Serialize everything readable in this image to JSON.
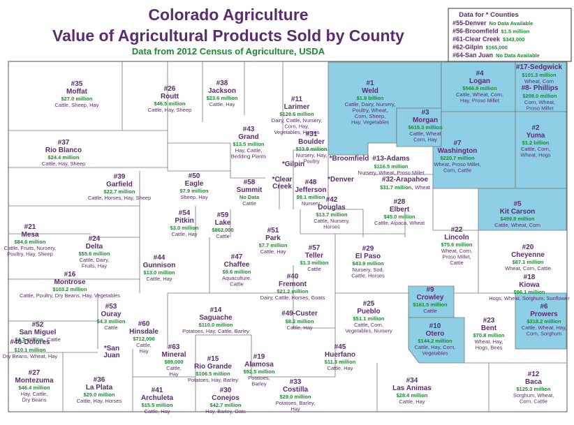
{
  "header": {
    "title": [
      "Colorado Agriculture",
      "Value of Agricultural Products Sold by County"
    ],
    "subtitle": "Data from 2012 Census of Agriculture, USDA"
  },
  "legend": {
    "title": "Data for * Counties",
    "items": [
      {
        "label": "#55-Denver",
        "note": "No Data Available"
      },
      {
        "label": "#56-Broomfield",
        "note": "$1.5 million"
      },
      {
        "label": "#61-Clear Creek",
        "note": "$343,000"
      },
      {
        "label": "#62-Gilpin",
        "note": "$165,000"
      },
      {
        "label": "#64-San Juan",
        "note": "No Data Available"
      }
    ]
  },
  "counties": [
    {
      "label": "#35",
      "name": "Moffat",
      "value": "$27.0 million",
      "products": [
        "Cattle, Sheep, Hay"
      ]
    },
    {
      "label": "#26",
      "name": "Routt",
      "value": "$46.5 million",
      "products": [
        "Cattle, Hay, Sheep"
      ]
    },
    {
      "label": "#38",
      "name": "Jackson",
      "value": "$23.6 million",
      "products": [
        "Cattle, Hay"
      ]
    },
    {
      "label": "#11",
      "name": "Larimer",
      "value": "$128.6 million",
      "products": [
        "Dairy, Cattle, Nursery,",
        "Corn, Hay,",
        "Vegetables, Horses"
      ]
    },
    {
      "label": "#1",
      "name": "Weld",
      "value": "$1.9 billion",
      "products": [
        "Cattle, Dairy, Nursery,",
        "Poultry, Wheat,",
        "Corn,  Sheep,",
        "Hay, Vegetables"
      ]
    },
    {
      "label": "#4",
      "name": "Logan",
      "value": "$566.9 million",
      "products": [
        "Cattle, Wheat, Corn,",
        "Hay, Proso Millet"
      ]
    },
    {
      "label": "#17-Sedgwick",
      "value": "$101.3 million",
      "products": [
        "Wheat, Corn"
      ]
    },
    {
      "label": "#8- Phillips",
      "value": "$208.0 million",
      "products": [
        "Corn, Wheat,",
        "Proso Millet"
      ]
    },
    {
      "label": "#3",
      "name": "Morgan",
      "value": "$615.3 million",
      "products": [
        "Cattle, Wheat",
        "Corn, Hay"
      ]
    },
    {
      "label": "#2",
      "name": "Yuma",
      "value": "$1.2 billion",
      "products": [
        "Cattle, Corn,",
        "Wheat, Hogs"
      ]
    },
    {
      "label": "#37",
      "name": "Rio Blanco",
      "value": "$24.4 million",
      "products": [
        "Cattle, Hay, Sheep"
      ]
    },
    {
      "label": "#43",
      "name": "Grand",
      "value": "$13.5 million",
      "products": [
        "Hay, Cattle,",
        "Bedding Plants"
      ]
    },
    {
      "label": "#31",
      "name": "Boulder",
      "value": "$33.9 million",
      "products": [
        "Nursery, Hay,",
        "Poultry"
      ]
    },
    {
      "label": "#7",
      "name": "Washington",
      "value": "$220.7 million",
      "products": [
        "Wheat, Proso Millet,",
        "Corn, Cattle"
      ]
    },
    {
      "label": "*Gilpin"
    },
    {
      "label": "*Broomfield"
    },
    {
      "label": "#13-Adams",
      "value": "$116.5 million",
      "products": [
        "Nursery, Wheat, Proso Millet"
      ]
    },
    {
      "label": "#39",
      "name": "Garfield",
      "value": "$22.7 million",
      "products": [
        "Cattle, Horses, Hay, Sheep"
      ]
    },
    {
      "label": "#50",
      "name": "Eagle",
      "value": "$7.9 million",
      "products": [
        "Sheep, Hay"
      ]
    },
    {
      "label": "#58",
      "name": "Summit",
      "value": "No Data",
      "products": [
        "Cattle"
      ]
    },
    {
      "label": "*Clear Creek"
    },
    {
      "label": "*Denver"
    },
    {
      "label": "#32-Arapahoe",
      "value": "$31.7 million,",
      "products": [
        "Wheat"
      ]
    },
    {
      "label": "#48",
      "name": "Jefferson",
      "value": "$9.1 million",
      "products": [
        "Nursery"
      ]
    },
    {
      "label": "#5",
      "name": "Kit Carson",
      "value": "$499.8 million",
      "products": [
        "Cattle, Wheat, Corn"
      ]
    },
    {
      "label": "#21",
      "name": "Mesa",
      "value": "$84.6 million",
      "products": [
        "Cattle, Fruits, Nursery,",
        "Poultry, Hay, Sheep"
      ]
    },
    {
      "label": "#54",
      "name": "Pitkin",
      "value": "$3.0 million",
      "products": [
        "Cattle, Hay"
      ]
    },
    {
      "label": "#59",
      "name": "Lake",
      "value": "$862,000",
      "products": [
        "Cattle"
      ]
    },
    {
      "label": "#42",
      "name": "Douglas",
      "value": "$13.7 million",
      "products": [
        "Cattle, Nursery,",
        "Horses"
      ]
    },
    {
      "label": "#28",
      "name": "Elbert",
      "value": "$45.0 million",
      "products": [
        "Cattle, Alpaca, Wheat"
      ]
    },
    {
      "label": "#51",
      "name": "Park",
      "value": "$7.7 million",
      "products": [
        "Cattle, Hay"
      ]
    },
    {
      "label": "#22",
      "name": "Lincoln",
      "value": "$75.6 million",
      "products": [
        "Wheat, Corn,",
        "Proso Millet,",
        "Cattle"
      ]
    },
    {
      "label": "#24",
      "name": "Delta",
      "value": "$55.6 million",
      "products": [
        "Cattle, Dairy,",
        "Fruits, Hay"
      ]
    },
    {
      "label": "#20",
      "name": "Cheyenne",
      "value": "$87.1 million",
      "products": [
        "Wheat, Corn, Cattle"
      ]
    },
    {
      "label": "#44",
      "name": "Gunnison",
      "value": "$13.0 million",
      "products": [
        "Cattle, Hay"
      ]
    },
    {
      "label": "#47",
      "name": "Chaffee",
      "value": "$9.6 million",
      "products": [
        "Aquaculture,",
        "Cattle"
      ]
    },
    {
      "label": "#57",
      "name": "Teller",
      "value": "$1.3 million",
      "products": [
        "Cattle"
      ]
    },
    {
      "label": "#29",
      "name": "El Paso",
      "value": "$43.9 million",
      "products": [
        "Nursery, Sod,",
        "Cattle, Horses"
      ]
    },
    {
      "label": "#16",
      "name": "Montrose",
      "value": "$103.2 million",
      "products": [
        "Cattle, Poultry, Dry Beans, Hay, Vegetables"
      ]
    },
    {
      "label": "#40",
      "name": "Fremont",
      "value": "$21.2 million",
      "products": [
        "Dairy, Cattle, Horses, Goats"
      ]
    },
    {
      "label": "#18",
      "name": "Kiowa",
      "value": "$96.1 million",
      "products": [
        "Hogs, Wheat, Sorghum, Sunflower"
      ]
    },
    {
      "label": "#9",
      "name": "Crowley",
      "value": "$161.5 million",
      "products": [
        "Cattle"
      ]
    },
    {
      "label": "#53",
      "name": "Ouray",
      "value": "$4.3 million",
      "products": [
        "Cattle"
      ]
    },
    {
      "label": "#14",
      "name": "Saguache",
      "value": "$110.0 million",
      "products": [
        "Potatoes, Hay, Cattle, Barley"
      ]
    },
    {
      "label": "#25",
      "name": "Pueblo",
      "value": "$51.1 million",
      "products": [
        "Cattle, Corn,",
        "Vegetables, Nursery"
      ]
    },
    {
      "label": "#6",
      "name": "Prowers",
      "value": "$318.2 million",
      "products": [
        "Cattle, Wheat, Hay,",
        "Corn, Sorghum"
      ]
    },
    {
      "label": "#49-Custer",
      "value": "$8.2 million",
      "products": [
        "Cattle, Hay"
      ]
    },
    {
      "label": "#52",
      "name": "San Miguel",
      "value": "$4.7 million,",
      "products": [
        "Cattle"
      ]
    },
    {
      "label": "#60",
      "name": "Hinsdale",
      "value": "$712,000",
      "products": [
        "Cattle,",
        "Hay"
      ]
    },
    {
      "label": "#10",
      "name": "Otero",
      "value": "$144.2 million",
      "products": [
        "Cattle, Hay, Corn,",
        "Vegetables"
      ]
    },
    {
      "label": "#23",
      "name": "Bent",
      "value": "$70.8 million",
      "products": [
        "Wheat, Hay,",
        "Hogs, Bees"
      ]
    },
    {
      "label": "#46-Dolores",
      "value": "$10.1 million",
      "products": [
        "Dry Beans, Wheat, Hay"
      ]
    },
    {
      "label": "*San Juan"
    },
    {
      "label": "#45",
      "name": "Huerfano",
      "value": "$11.3 million",
      "products": [
        "Cattle, Hay"
      ]
    },
    {
      "label": "#63",
      "name": "Mineral",
      "value": "$89,000",
      "products": [
        "Cattle,",
        "Hay"
      ]
    },
    {
      "label": "#15",
      "name": "Rio Grande",
      "value": "$106.5 million",
      "products": [
        "Potatoes, Hay, Barley"
      ]
    },
    {
      "label": "#19",
      "name": "Alamosa",
      "value": "$92.5 million",
      "products": [
        "Potatoes,",
        "Barley"
      ]
    },
    {
      "label": "#27",
      "name": "Montezuma",
      "value": "$46.4 million",
      "products": [
        "Hay, Cattle,",
        "Dry Beans"
      ]
    },
    {
      "label": "#36",
      "name": "La Plata",
      "value": "$25.0 million",
      "products": [
        "Cattle, Hay, Horses"
      ]
    },
    {
      "label": "#33",
      "name": "Costilla",
      "value": "$29.0 million",
      "products": [
        "Potatoes, Barley,",
        "Hay"
      ]
    },
    {
      "label": "#34",
      "name": "Las Animas",
      "value": "$28.4 million",
      "products": [
        "Cattle, Hay"
      ]
    },
    {
      "label": "#12",
      "name": "Baca",
      "value": "$125.3 million",
      "products": [
        "Sorghum, Wheat,",
        "Corn, Cattle"
      ]
    },
    {
      "label": "#41",
      "name": "Archuleta",
      "value": "$15.5 million",
      "products": [
        "Cattle, Hay"
      ]
    },
    {
      "label": "#30",
      "name": "Conejos",
      "value": "$42.7 million",
      "products": [
        "Hay, Barley, Oats"
      ]
    }
  ]
}
